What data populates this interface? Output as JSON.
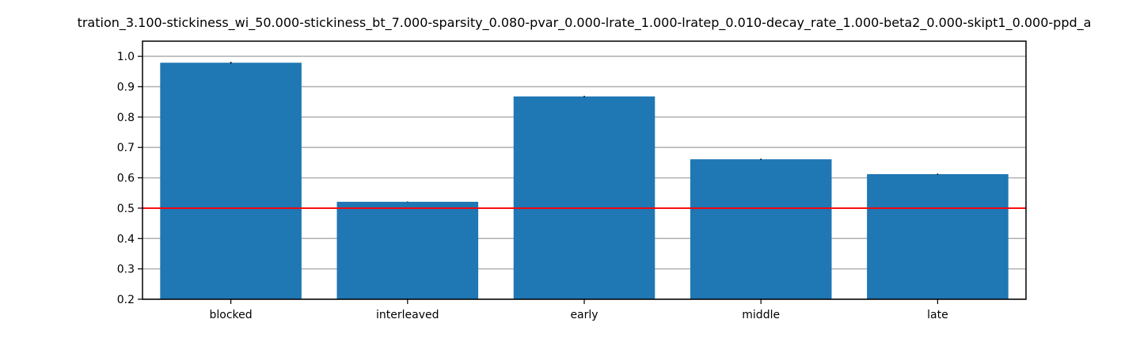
{
  "chart_data": {
    "type": "bar",
    "title": "tration_3.100-stickiness_wi_50.000-stickiness_bt_7.000-sparsity_0.080-pvar_0.000-lrate_1.000-lratep_0.010-decay_rate_1.000-beta2_0.000-skipt1_0.000-ppd_a",
    "categories": [
      "blocked",
      "interleaved",
      "early",
      "middle",
      "late"
    ],
    "values": [
      0.979,
      0.521,
      0.868,
      0.661,
      0.612
    ],
    "errors": [
      0.003,
      0.001,
      0.002,
      0.002,
      0.002
    ],
    "ylim": [
      0.2,
      1.05
    ],
    "yticks": [
      0.2,
      0.3,
      0.4,
      0.5,
      0.6,
      0.7,
      0.8,
      0.9,
      1.0
    ],
    "ytick_labels": [
      "0.2",
      "0.3",
      "0.4",
      "0.5",
      "0.6",
      "0.7",
      "0.8",
      "0.9",
      "1.0"
    ],
    "reference_line": 0.5,
    "grid": "y",
    "xlabel": "",
    "ylabel": "",
    "colors": {
      "bar": "#1f77b4",
      "reference_line": "#ff0000",
      "grid": "#b0b0b0",
      "error": "#000000"
    }
  }
}
